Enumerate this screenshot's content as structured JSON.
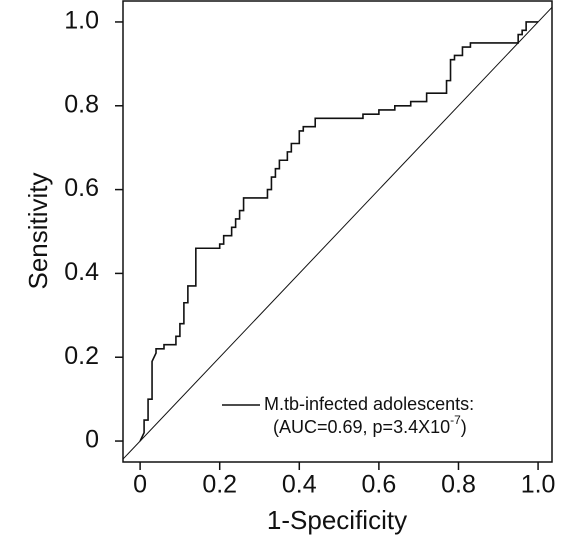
{
  "chart_data": {
    "type": "line",
    "x_label": "1-Specificity",
    "y_label": "Sensitivity",
    "x": [
      0,
      0.01,
      0.01,
      0.02,
      0.02,
      0.03,
      0.03,
      0.04,
      0.04,
      0.06,
      0.06,
      0.09,
      0.09,
      0.1,
      0.1,
      0.11,
      0.11,
      0.12,
      0.12,
      0.14,
      0.14,
      0.14,
      0.14,
      0.2,
      0.2,
      0.21,
      0.21,
      0.23,
      0.23,
      0.24,
      0.24,
      0.25,
      0.25,
      0.26,
      0.26,
      0.32,
      0.32,
      0.33,
      0.33,
      0.34,
      0.34,
      0.35,
      0.35,
      0.37,
      0.37,
      0.38,
      0.38,
      0.4,
      0.4,
      0.41,
      0.41,
      0.44,
      0.44,
      0.56,
      0.56,
      0.6,
      0.6,
      0.64,
      0.64,
      0.68,
      0.68,
      0.72,
      0.72,
      0.77,
      0.77,
      0.78,
      0.78,
      0.79,
      0.79,
      0.81,
      0.81,
      0.83,
      0.83,
      0.95,
      0.95,
      0.96,
      0.96,
      0.97,
      0.97,
      1
    ],
    "series": [
      {
        "name": "M.tb-infected adolescents:",
        "color": "#111111",
        "values": [
          0,
          0.02,
          0.05,
          0.05,
          0.1,
          0.1,
          0.19,
          0.21,
          0.22,
          0.22,
          0.23,
          0.23,
          0.25,
          0.25,
          0.28,
          0.28,
          0.33,
          0.33,
          0.37,
          0.37,
          0.42,
          0.42,
          0.46,
          0.46,
          0.47,
          0.47,
          0.49,
          0.49,
          0.51,
          0.51,
          0.53,
          0.53,
          0.55,
          0.55,
          0.58,
          0.58,
          0.6,
          0.6,
          0.63,
          0.63,
          0.65,
          0.65,
          0.67,
          0.67,
          0.69,
          0.69,
          0.71,
          0.71,
          0.74,
          0.74,
          0.75,
          0.75,
          0.77,
          0.77,
          0.78,
          0.78,
          0.79,
          0.79,
          0.8,
          0.8,
          0.81,
          0.81,
          0.83,
          0.83,
          0.86,
          0.86,
          0.91,
          0.91,
          0.92,
          0.92,
          0.94,
          0.94,
          0.95,
          0.95,
          0.97,
          0.97,
          0.98,
          0.98,
          1,
          1
        ]
      }
    ],
    "annotation": [
      "(AUC=0.69, p=3.4X10",
      "-7",
      ")"
    ],
    "xlim": [
      -0.043,
      1.035
    ],
    "ylim": [
      -0.05,
      1.05
    ],
    "xticks": [
      0,
      0.2,
      0.4,
      0.6,
      0.8,
      {
        "value": 1,
        "label": "1.0"
      }
    ],
    "yticks": [
      0,
      0.2,
      0.4,
      0.6,
      0.8,
      {
        "value": 1,
        "label": "1.0"
      }
    ],
    "diagonal": true
  }
}
